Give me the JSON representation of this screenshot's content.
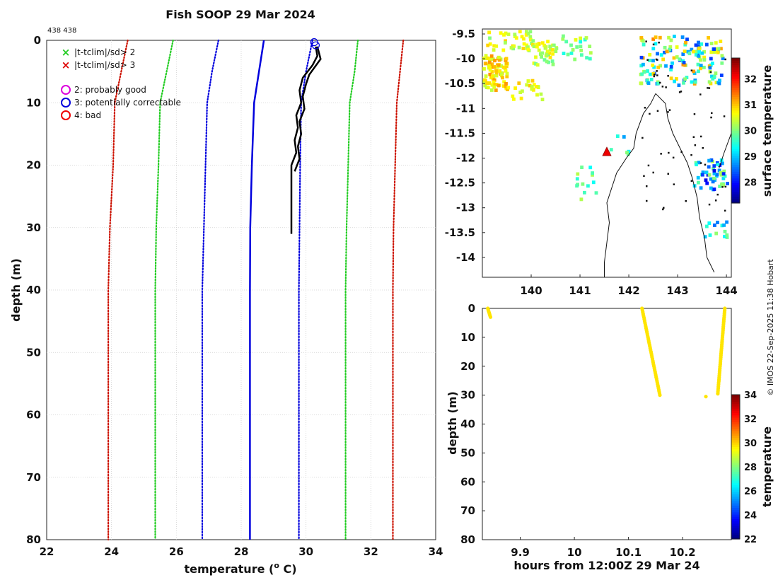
{
  "page": {
    "title": "Fish SOOP 29 Mar 2024",
    "counts_label": "438 438",
    "credit": "© IMOS 22-Sep-2025 11:38 Hobart"
  },
  "legend": {
    "flags": [
      {
        "symbol": "×",
        "label": "|t-tclim|/sd> 2",
        "color": "#22cc22"
      },
      {
        "symbol": "×",
        "label": "|t-tclim|/sd> 3",
        "color": "#dd0000"
      }
    ],
    "qc": [
      {
        "label": "2: probably good",
        "color": "#dd00dd"
      },
      {
        "label": "3: potentially correctable",
        "color": "#0000dd"
      },
      {
        "label": "4: bad",
        "color": "#ee0000"
      }
    ]
  },
  "chart_data": [
    {
      "type": "line",
      "name": "temperature profile",
      "xlabel": "temperature (o C)",
      "ylabel": "depth (m)",
      "xlim": [
        22,
        34
      ],
      "ylim": [
        0,
        80
      ],
      "xticks": [
        22,
        24,
        26,
        28,
        30,
        32,
        34
      ],
      "yticks": [
        0,
        10,
        20,
        30,
        40,
        50,
        60,
        70,
        80
      ],
      "grid": true,
      "series": [
        {
          "name": "climatology mean",
          "style": "solid",
          "color": "#0000dd",
          "width": 2.5,
          "points": [
            [
              28.7,
              0
            ],
            [
              28.55,
              5
            ],
            [
              28.4,
              10
            ],
            [
              28.33,
              20
            ],
            [
              28.28,
              30
            ],
            [
              28.27,
              40
            ],
            [
              28.27,
              50
            ],
            [
              28.27,
              80
            ]
          ]
        },
        {
          "name": "mean - 1 sd",
          "style": "dotted",
          "color": "#0000dd",
          "points": [
            [
              27.3,
              0
            ],
            [
              27.1,
              5
            ],
            [
              26.95,
              10
            ],
            [
              26.9,
              20
            ],
            [
              26.85,
              30
            ],
            [
              26.8,
              40
            ],
            [
              26.8,
              80
            ]
          ]
        },
        {
          "name": "mean + 1 sd",
          "style": "dotted",
          "color": "#0000dd",
          "points": [
            [
              30.2,
              0
            ],
            [
              30.0,
              5
            ],
            [
              29.85,
              10
            ],
            [
              29.82,
              20
            ],
            [
              29.8,
              30
            ],
            [
              29.78,
              40
            ],
            [
              29.78,
              80
            ]
          ]
        },
        {
          "name": "mean - 2 sd",
          "style": "dotted",
          "color": "#22cc22",
          "points": [
            [
              25.9,
              0
            ],
            [
              25.7,
              5
            ],
            [
              25.5,
              10
            ],
            [
              25.45,
              20
            ],
            [
              25.38,
              30
            ],
            [
              25.35,
              40
            ],
            [
              25.35,
              80
            ]
          ]
        },
        {
          "name": "mean + 2 sd",
          "style": "dotted",
          "color": "#22cc22",
          "points": [
            [
              31.6,
              0
            ],
            [
              31.5,
              5
            ],
            [
              31.35,
              10
            ],
            [
              31.3,
              20
            ],
            [
              31.25,
              30
            ],
            [
              31.22,
              40
            ],
            [
              31.22,
              80
            ]
          ]
        },
        {
          "name": "mean - 3 sd",
          "style": "dotted",
          "color": "#cc1100",
          "points": [
            [
              24.5,
              0
            ],
            [
              24.3,
              5
            ],
            [
              24.1,
              10
            ],
            [
              24.05,
              20
            ],
            [
              23.95,
              30
            ],
            [
              23.9,
              40
            ],
            [
              23.9,
              80
            ]
          ]
        },
        {
          "name": "mean + 3 sd",
          "style": "dotted",
          "color": "#cc1100",
          "points": [
            [
              33.0,
              0
            ],
            [
              32.9,
              5
            ],
            [
              32.8,
              10
            ],
            [
              32.75,
              20
            ],
            [
              32.7,
              30
            ],
            [
              32.68,
              40
            ],
            [
              32.68,
              80
            ]
          ]
        },
        {
          "name": "observed profile 1",
          "style": "solid",
          "color": "#000000",
          "width": 2.5,
          "points": [
            [
              30.3,
              1.0
            ],
            [
              30.35,
              2.5
            ],
            [
              30.2,
              4
            ],
            [
              29.9,
              6
            ],
            [
              29.8,
              8
            ],
            [
              29.85,
              10
            ],
            [
              29.7,
              12
            ],
            [
              29.75,
              14
            ],
            [
              29.65,
              16
            ],
            [
              29.7,
              18
            ],
            [
              29.55,
              20
            ],
            [
              29.55,
              25
            ],
            [
              29.55,
              31
            ]
          ]
        },
        {
          "name": "observed profile 2",
          "style": "solid",
          "color": "#000000",
          "width": 2.5,
          "points": [
            [
              30.35,
              1.0
            ],
            [
              30.45,
              3
            ],
            [
              30.1,
              5.5
            ],
            [
              30.0,
              7
            ],
            [
              29.9,
              9
            ],
            [
              29.95,
              11
            ],
            [
              29.8,
              13
            ],
            [
              29.85,
              15
            ],
            [
              29.75,
              17
            ],
            [
              29.8,
              19
            ],
            [
              29.65,
              21
            ]
          ]
        }
      ],
      "qc_markers": [
        {
          "flag": 3,
          "temperature": 30.25,
          "depth": 0.3
        },
        {
          "flag": 3,
          "temperature": 30.3,
          "depth": 0.8
        }
      ]
    },
    {
      "type": "heatmap",
      "name": "surface temperature map",
      "xlim": [
        139.0,
        144.1
      ],
      "ylim": [
        -14.4,
        -9.4
      ],
      "xticks": [
        140,
        141,
        142,
        143,
        144
      ],
      "yticks": [
        -9.5,
        -10,
        -10.5,
        -11,
        -11.5,
        -12,
        -12.5,
        -13,
        -13.5,
        -14
      ],
      "xtick_labels": [
        "140",
        "141",
        "142",
        "143",
        "144"
      ],
      "ytick_labels": [
        "-9.5",
        "-10",
        "-10.5",
        "-11",
        "-11.5",
        "-12",
        "-12.5",
        "-13",
        "-13.5",
        "-14"
      ],
      "colorbar": {
        "label": "surface temperature",
        "range": [
          27.2,
          32.8
        ],
        "ticks": [
          28,
          29,
          30,
          31,
          32
        ]
      },
      "marker": {
        "lon": 141.55,
        "lat": -11.88,
        "shape": "triangle",
        "color": "#ee0000"
      }
    },
    {
      "type": "scatter",
      "name": "depth vs time",
      "xlabel": "hours from 12:00Z 29 Mar 24",
      "ylabel": "depth (m)",
      "xlim": [
        9.83,
        10.29
      ],
      "ylim": [
        0,
        80
      ],
      "xticks": [
        9.9,
        10,
        10.1,
        10.2
      ],
      "xtick_labels": [
        "9.9",
        "10",
        "10.1",
        "10.2"
      ],
      "yticks": [
        0,
        10,
        20,
        30,
        40,
        50,
        60,
        70,
        80
      ],
      "colorbar": {
        "label": "temperature",
        "range": [
          22,
          34
        ],
        "ticks": [
          22,
          24,
          26,
          28,
          30,
          32,
          34
        ]
      },
      "casts": [
        {
          "x_start": 9.84,
          "x_end": 9.845,
          "depth_max": 3
        },
        {
          "x_start": 10.125,
          "x_end": 10.158,
          "depth_max": 30
        },
        {
          "x_start": 10.278,
          "x_end": 10.265,
          "depth_max": 29.5
        }
      ],
      "extra_points": [
        {
          "x": 10.243,
          "y": 30.5
        }
      ]
    }
  ]
}
